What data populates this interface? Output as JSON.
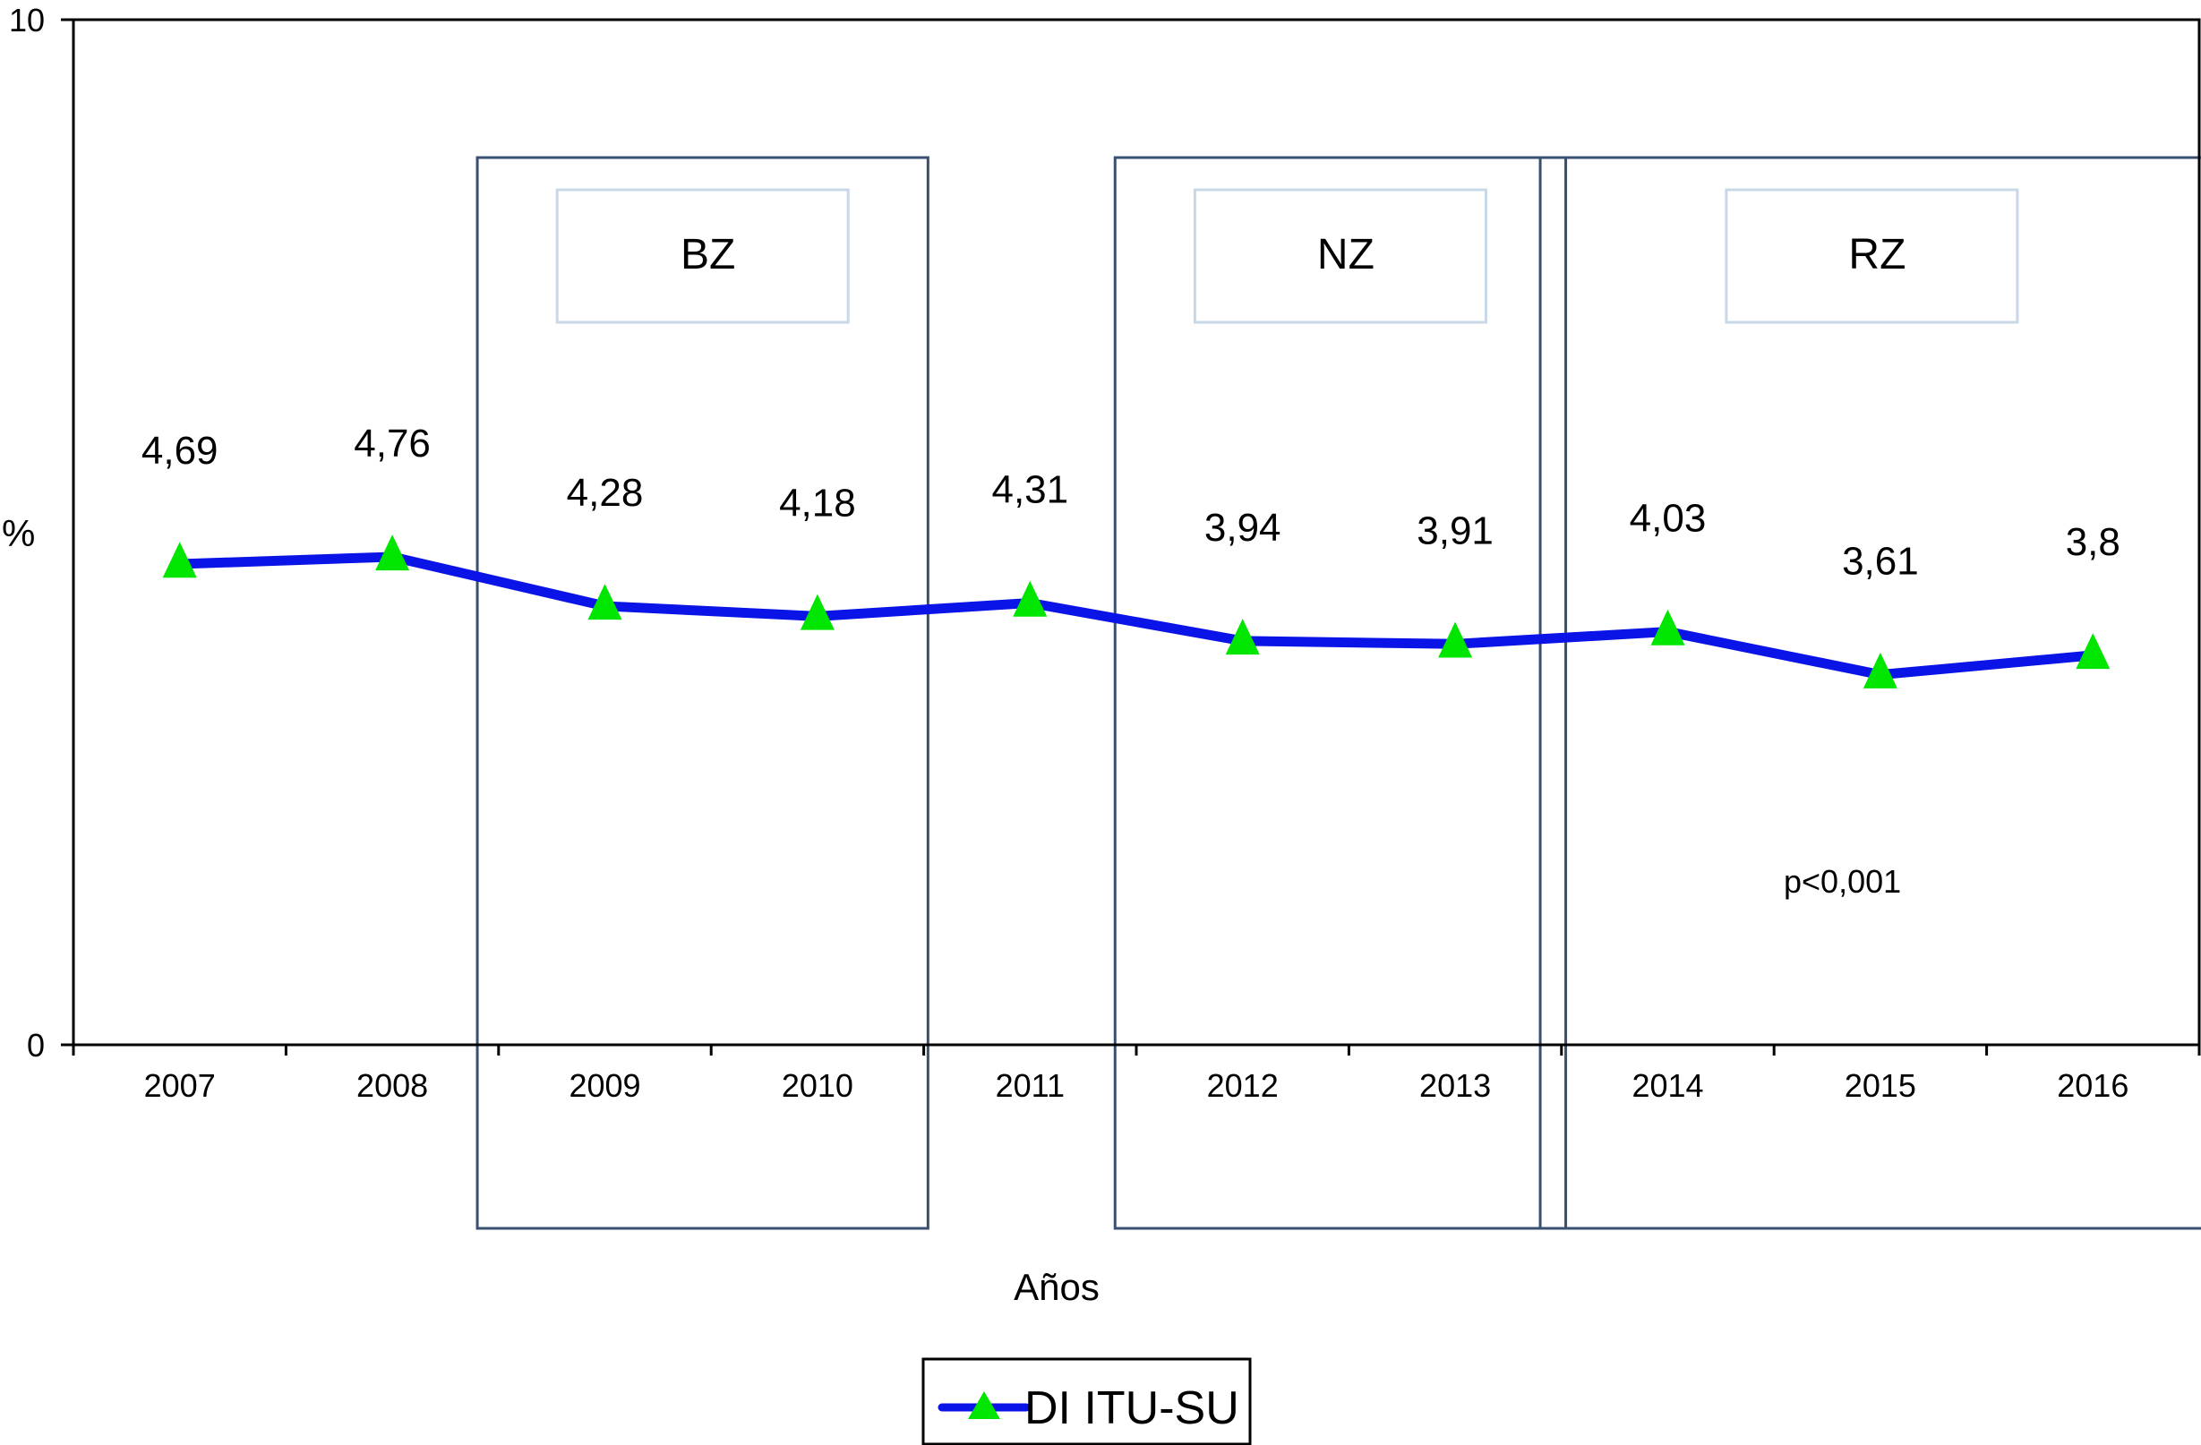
{
  "chart_data": {
    "type": "line",
    "title": "",
    "xlabel": "Años",
    "ylabel": "%",
    "ylim": [
      0,
      10
    ],
    "y_ticks": [
      "0",
      "10"
    ],
    "categories": [
      "2007",
      "2008",
      "2009",
      "2010",
      "2011",
      "2012",
      "2013",
      "2014",
      "2015",
      "2016"
    ],
    "series": [
      {
        "name": "DI ITU-SU",
        "values": [
          4.69,
          4.76,
          4.28,
          4.18,
          4.31,
          3.94,
          3.91,
          4.03,
          3.61,
          3.8
        ],
        "labels": [
          "4,69",
          "4,76",
          "4,28",
          "4,18",
          "4,31",
          "3,94",
          "3,91",
          "4,03",
          "3,61",
          "3,8"
        ],
        "line_color": "#0a14e6",
        "marker_color": "#00e600",
        "marker": "triangle"
      }
    ],
    "zones": [
      {
        "label": "BZ",
        "from": "2009",
        "to": "2010"
      },
      {
        "label": "NZ",
        "from": "2012",
        "to": "2013"
      },
      {
        "label": "RZ",
        "from": "2014",
        "to": "2016"
      }
    ],
    "annotation": "p<0,001",
    "legend": {
      "position": "bottom-center",
      "entries": [
        "DI ITU-SU"
      ]
    },
    "grid": false,
    "colors": {
      "zone_border": "#3a5070",
      "zone_label_border": "#c9d8e8",
      "axis": "#000000"
    }
  }
}
